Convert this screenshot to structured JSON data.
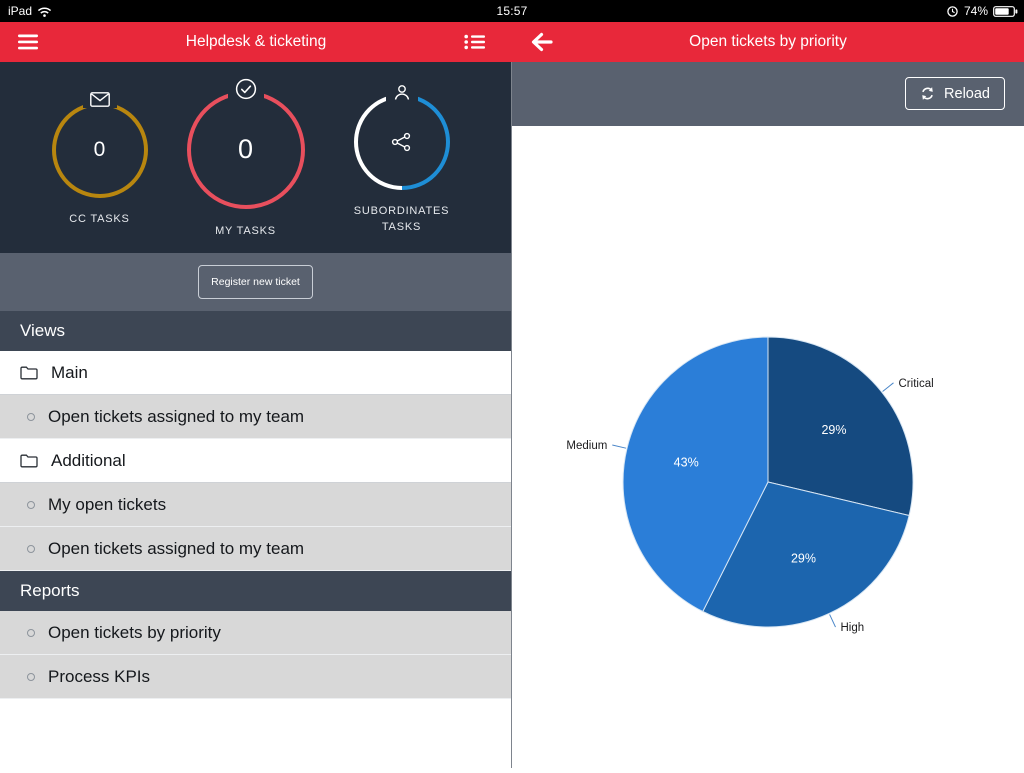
{
  "statusbar": {
    "carrier": "iPad",
    "time": "15:57",
    "battery": "74%"
  },
  "header": {
    "menu_title": "Helpdesk & ticketing",
    "detail_title": "Open tickets by priority"
  },
  "dashboard": {
    "gauges": [
      {
        "label": "CC TASKS",
        "value": "0",
        "ring_color": "#b8860f"
      },
      {
        "label": "MY TASKS",
        "value": "0",
        "ring_color": "#e84f5d"
      },
      {
        "label": "SUBORDINATES TASKS",
        "ring_color": "#1e8ed6",
        "ring_color2": "#ffffff"
      }
    ],
    "register_button": "Register new ticket"
  },
  "sidebar": {
    "views_header": "Views",
    "reports_header": "Reports",
    "items": [
      {
        "label": "Main"
      },
      {
        "label": "Open tickets assigned to my team"
      },
      {
        "label": "Additional"
      },
      {
        "label": "My open tickets"
      },
      {
        "label": "Open tickets assigned to my team"
      },
      {
        "label": "Open tickets by priority"
      },
      {
        "label": "Process KPIs"
      }
    ]
  },
  "toolbar": {
    "reload": "Reload"
  },
  "chart_data": {
    "type": "pie",
    "title": "Open tickets by priority",
    "labels": [
      "Critical",
      "High",
      "Medium"
    ],
    "values": [
      29,
      29,
      43
    ],
    "unit": "%",
    "colors": [
      "#154a80",
      "#1c65ae",
      "#2b7ed8"
    ],
    "start_angle_deg": 0,
    "direction": "clockwise",
    "legend": "none",
    "label_style": "percent inside slice, category name outside with leader line"
  },
  "colors": {
    "accent_red": "#e8283a",
    "panel_dark": "#232d3b",
    "panel_grey": "#59616f",
    "section_header": "#3d4654",
    "row_grey": "#d8d8d8"
  }
}
